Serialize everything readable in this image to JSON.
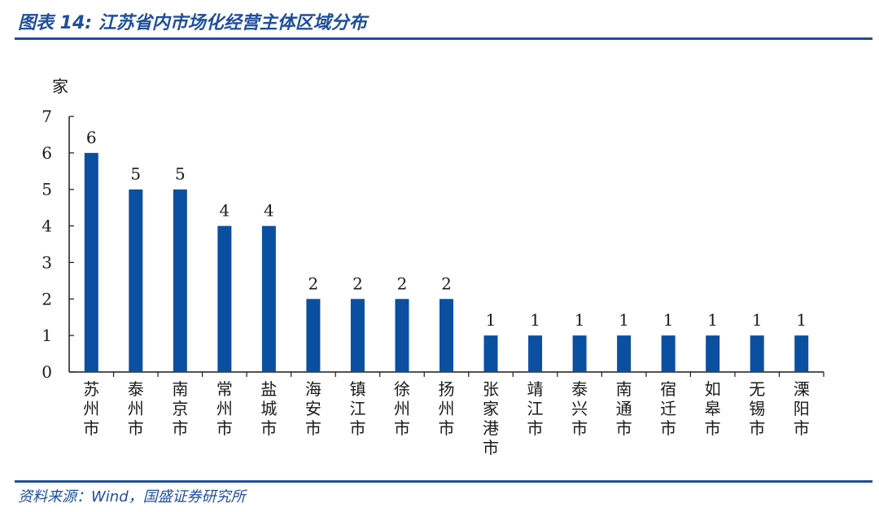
{
  "figure": {
    "title": "图表 14:  江苏省内市场化经营主体区域分布",
    "source": "资料来源：Wind，国盛证券研究所"
  },
  "colors": {
    "accent": "#1f4e9c",
    "bar": "#0b4fa0"
  },
  "chart_data": {
    "type": "bar",
    "ylabel": "家",
    "ylim": [
      0,
      7
    ],
    "yticks": [
      0,
      1,
      2,
      3,
      4,
      5,
      6,
      7
    ],
    "categories": [
      "苏州市",
      "泰州市",
      "南京市",
      "常州市",
      "盐城市",
      "海安市",
      "镇江市",
      "徐州市",
      "扬州市",
      "张家港市",
      "靖江市",
      "泰兴市",
      "南通市",
      "宿迁市",
      "如皋市",
      "无锡市",
      "溧阳市"
    ],
    "values": [
      6,
      5,
      5,
      4,
      4,
      2,
      2,
      2,
      2,
      1,
      1,
      1,
      1,
      1,
      1,
      1,
      1
    ],
    "data_labels": true,
    "grid": false,
    "legend": "none"
  }
}
